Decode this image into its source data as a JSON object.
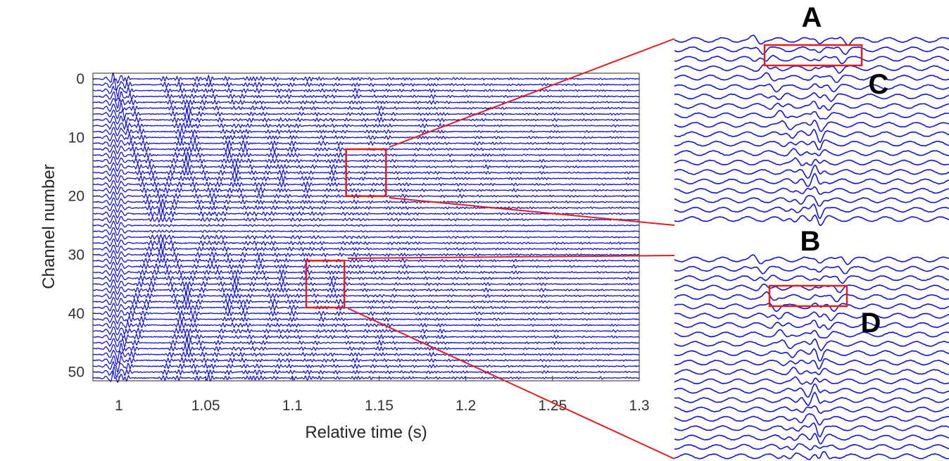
{
  "chart_data": [
    {
      "type": "line",
      "title": "",
      "xlabel": "Relative time (s)",
      "ylabel": "Channel number",
      "xlim": [
        0.985,
        1.3
      ],
      "ylim": [
        0,
        51
      ],
      "y_reversed": true,
      "x_ticks": [
        "1",
        "1.05",
        "1.1",
        "1.15",
        "1.2",
        "1.25",
        "1.3"
      ],
      "x_tick_values": [
        1,
        1.05,
        1.1,
        1.15,
        1.2,
        1.25,
        1.3
      ],
      "y_ticks": [
        "0",
        "10",
        "20",
        "30",
        "40",
        "50"
      ],
      "y_tick_values": [
        0,
        10,
        20,
        30,
        40,
        50
      ],
      "grid": false,
      "trace_color": "#1515d6",
      "channel_count": 52,
      "note": "seismic-style multichannel waveform traces, one trace per channel",
      "zoom_boxes": [
        {
          "panel": "A",
          "x_range": [
            1.131,
            1.154
          ],
          "channels": [
            12,
            20
          ]
        },
        {
          "panel": "B",
          "x_range": [
            1.108,
            1.13
          ],
          "channels": [
            31,
            39
          ]
        }
      ]
    },
    {
      "type": "line",
      "panel": "A",
      "title": "A",
      "trace_count": 20,
      "trace_color": "#1515d6",
      "highlight_box_label": "C"
    },
    {
      "type": "line",
      "panel": "B",
      "title": "B",
      "trace_count": 22,
      "trace_color": "#1515d6",
      "highlight_box_label": "D"
    }
  ],
  "colors": {
    "traces": "#1515d6",
    "highlight": "#e0201f",
    "axis": "#262626"
  }
}
